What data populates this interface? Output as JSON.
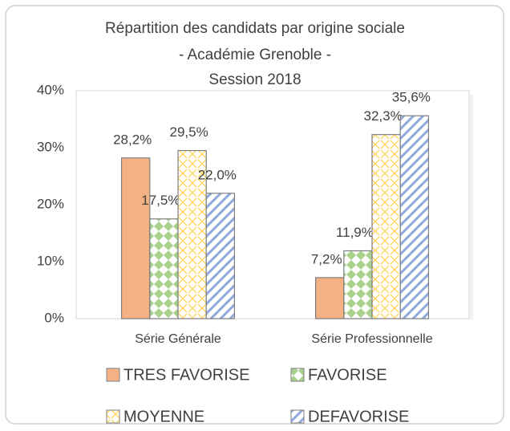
{
  "chart_data": {
    "type": "bar",
    "title": "Répartition des candidats par origine sociale",
    "subtitle": [
      "- Académie Grenoble -",
      "Session 2018"
    ],
    "categories": [
      "Série Générale",
      "Série Professionnelle"
    ],
    "series": [
      {
        "name": "TRES FAVORISE",
        "color": "#f4b183",
        "pattern": "solid",
        "values": [
          28.2,
          7.2
        ],
        "value_labels": [
          "28,2%",
          "7,2%"
        ]
      },
      {
        "name": "FAVORISE",
        "color": "#a9d18e",
        "pattern": "diamond",
        "values": [
          17.5,
          11.9
        ],
        "value_labels": [
          "17,5%",
          "11,9%"
        ]
      },
      {
        "name": "MOYENNE",
        "color": "#ffd966",
        "pattern": "dashed-diagonal",
        "values": [
          29.5,
          32.3
        ],
        "value_labels": [
          "29,5%",
          "32,3%"
        ]
      },
      {
        "name": "DEFAVORISE",
        "color": "#8faadc",
        "pattern": "diagonal",
        "values": [
          22.0,
          35.6
        ],
        "value_labels": [
          "22,0%",
          "35,6%"
        ]
      }
    ],
    "ylim": [
      0,
      40
    ],
    "yticks": [
      {
        "value": 0,
        "label": "0%"
      },
      {
        "value": 10,
        "label": "10%"
      },
      {
        "value": 20,
        "label": "20%"
      },
      {
        "value": 30,
        "label": "30%"
      },
      {
        "value": 40,
        "label": "40%"
      }
    ],
    "grid": false,
    "legend": "bottom"
  }
}
